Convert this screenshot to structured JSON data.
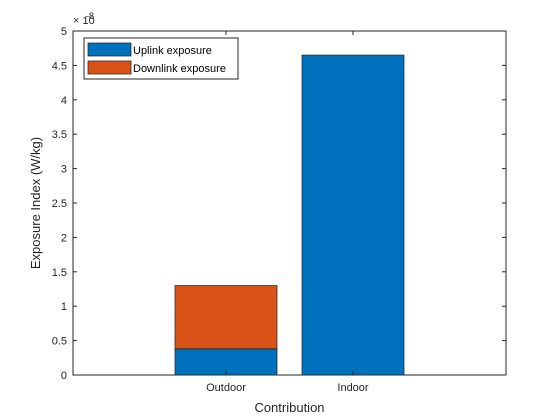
{
  "chart_data": {
    "type": "bar",
    "stacked": true,
    "categories": [
      "Outdoor",
      "Indoor"
    ],
    "series": [
      {
        "name": "Uplink exposure",
        "values": [
          0.38,
          4.65
        ],
        "color": "#0072BD"
      },
      {
        "name": "Downlink exposure",
        "values": [
          0.92,
          0
        ],
        "color": "#D95319"
      }
    ],
    "xlabel": "Contribution",
    "ylabel": "Exposure Index (W/kg)",
    "ylim": [
      0,
      5
    ],
    "yticks": [
      "0",
      "0.5",
      "1",
      "1.5",
      "2",
      "2.5",
      "3",
      "3.5",
      "4",
      "4.5",
      "5"
    ],
    "y_multiplier": {
      "base": "× 10",
      "exponent": "-8"
    },
    "grid": false,
    "legend_position": "top-left",
    "colors": {
      "axis": "#262626",
      "background": "#ffffff"
    }
  }
}
